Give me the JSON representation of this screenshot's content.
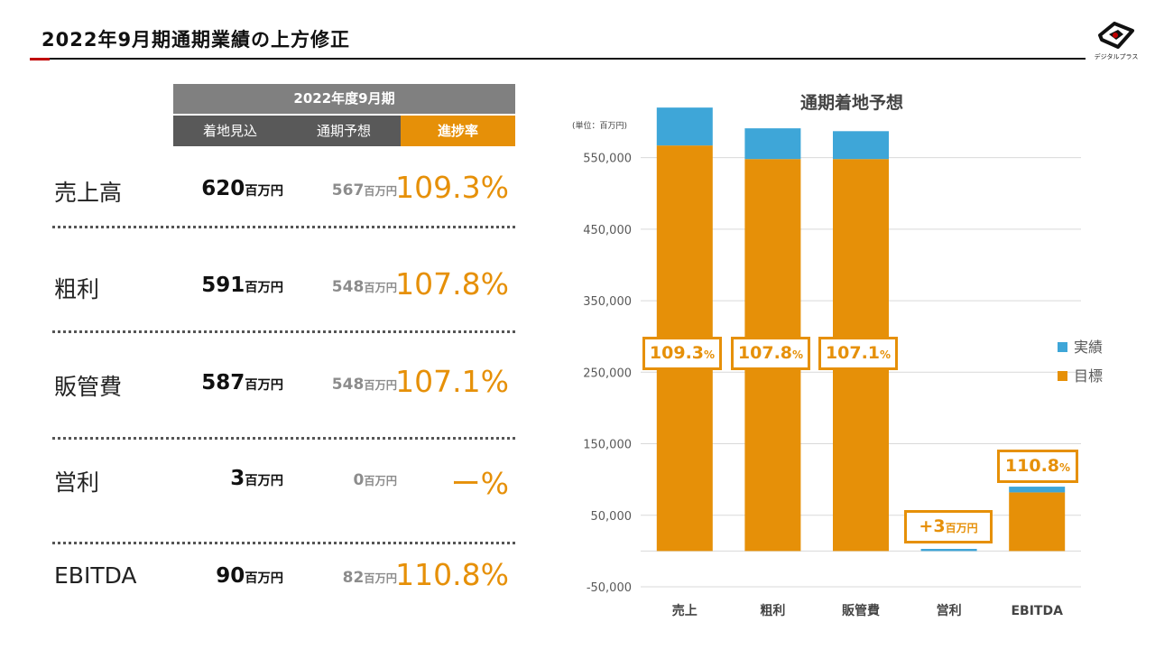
{
  "header": {
    "title": "2022年9月期通期業績の上方修正",
    "logo_text": "デジタルプラス",
    "logo_icon": "d-plus-logo-icon"
  },
  "table": {
    "period_header": "2022年度9月期",
    "columns": [
      "着地見込",
      "通期予想",
      "進捗率"
    ],
    "unit": "百万円",
    "rows": [
      {
        "label": "売上高",
        "forecast": "620",
        "plan": "567",
        "rate": "109.3%"
      },
      {
        "label": "粗利",
        "forecast": "591",
        "plan": "548",
        "rate": "107.8%"
      },
      {
        "label": "販管費",
        "forecast": "587",
        "plan": "548",
        "rate": "107.1%"
      },
      {
        "label": "営利",
        "forecast": "3",
        "plan": "0",
        "rate": "ー%"
      },
      {
        "label": "EBITDA",
        "forecast": "90",
        "plan": "82",
        "rate": "110.8%"
      }
    ]
  },
  "chart_data": {
    "type": "bar",
    "stacked": true,
    "title": "通期着地予想",
    "unit_note": "(単位：百万円)",
    "categories": [
      "売上",
      "粗利",
      "販管費",
      "営利",
      "EBITDA"
    ],
    "series": [
      {
        "name": "目標",
        "color": "#e69008",
        "values": [
          567000,
          548000,
          548000,
          0,
          82000
        ]
      },
      {
        "name": "実績",
        "color": "#3ea6d8",
        "values": [
          53000,
          43000,
          39000,
          3000,
          8000
        ]
      }
    ],
    "yticks": [
      "-50,000",
      "50,000",
      "150,000",
      "250,000",
      "350,000",
      "450,000",
      "550,000"
    ],
    "ylim": [
      -50000,
      600000
    ],
    "grid": true,
    "legend": [
      "実績",
      "目標"
    ],
    "legend_position": "right",
    "callouts": [
      {
        "category": "売上",
        "text": "109.3",
        "suffix": "%"
      },
      {
        "category": "粗利",
        "text": "107.8",
        "suffix": "%"
      },
      {
        "category": "販管費",
        "text": "107.1",
        "suffix": "%"
      },
      {
        "category": "営利",
        "text": "+3",
        "suffix": "百万円"
      },
      {
        "category": "EBITDA",
        "text": "110.8",
        "suffix": "%"
      }
    ]
  }
}
